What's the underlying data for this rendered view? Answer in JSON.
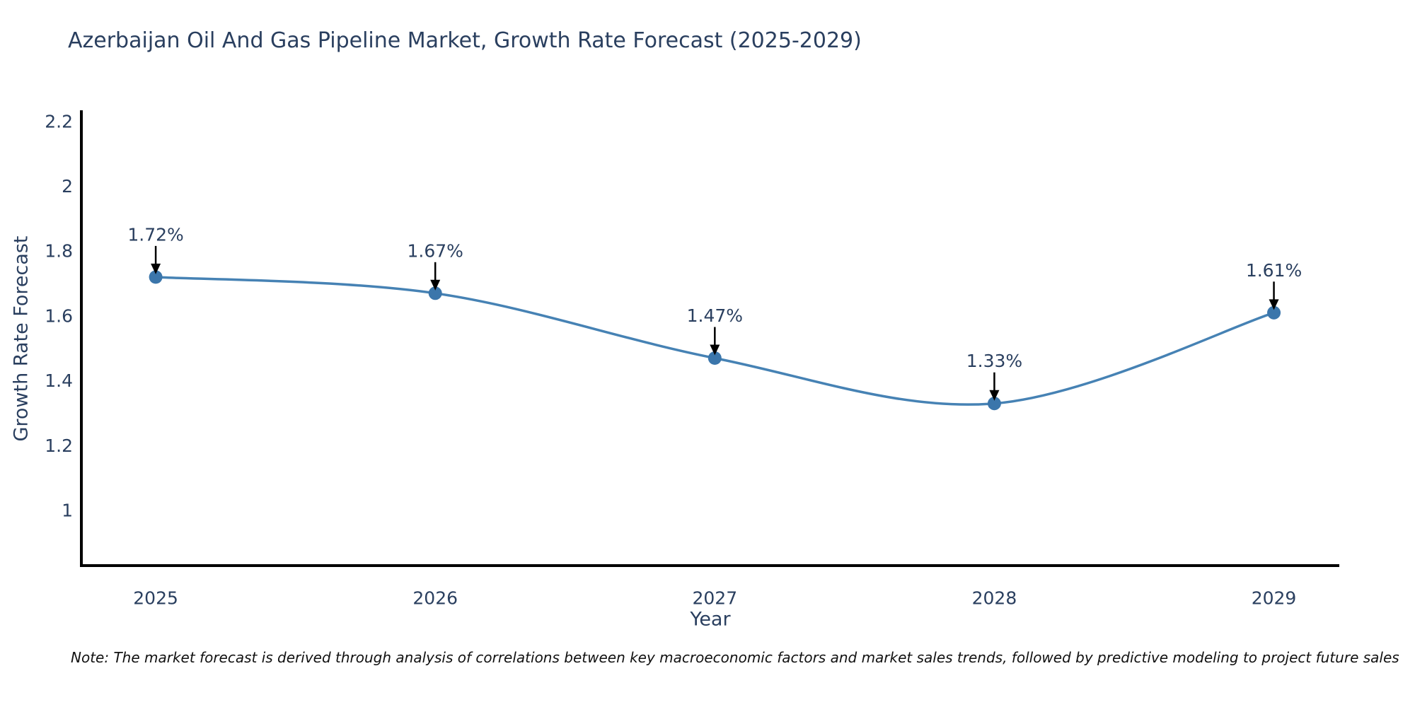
{
  "title": "Azerbaijan Oil And Gas Pipeline Market, Growth Rate Forecast (2025-2029)",
  "note": "Note: The market forecast is derived through analysis of correlations between key macroeconomic factors and market sales trends, followed by predictive modeling to project future sales",
  "chart_data": {
    "type": "line",
    "curve": "spline",
    "title": "Azerbaijan Oil And Gas Pipeline Market, Growth Rate Forecast (2025-2029)",
    "xlabel": "Year",
    "ylabel": "Growth Rate Forecast",
    "x": [
      2025,
      2026,
      2027,
      2028,
      2029
    ],
    "values": [
      1.72,
      1.67,
      1.47,
      1.33,
      1.61
    ],
    "point_labels": [
      "1.72%",
      "1.67%",
      "1.47%",
      "1.33%",
      "1.61%"
    ],
    "xticks": [
      2025,
      2026,
      2027,
      2028,
      2029
    ],
    "xtick_labels": [
      "2025",
      "2026",
      "2027",
      "2028",
      "2029"
    ],
    "yticks": [
      1,
      1.2,
      1.4,
      1.6,
      1.8,
      2,
      2.2
    ],
    "ytick_labels": [
      "1",
      "1.2",
      "1.4",
      "1.6",
      "1.8",
      "2",
      "2.2"
    ],
    "xlim": [
      2024.734,
      2029.234
    ],
    "ylim": [
      0.83,
      2.23
    ],
    "grid": false,
    "legend": "none",
    "line_color": "#4682b4",
    "marker_color": "#3b76ab",
    "axis_color": "#000000",
    "tick_color": "#2a3f5f",
    "annotation_color": "#2a3f5f",
    "arrow_color": "#000000"
  }
}
